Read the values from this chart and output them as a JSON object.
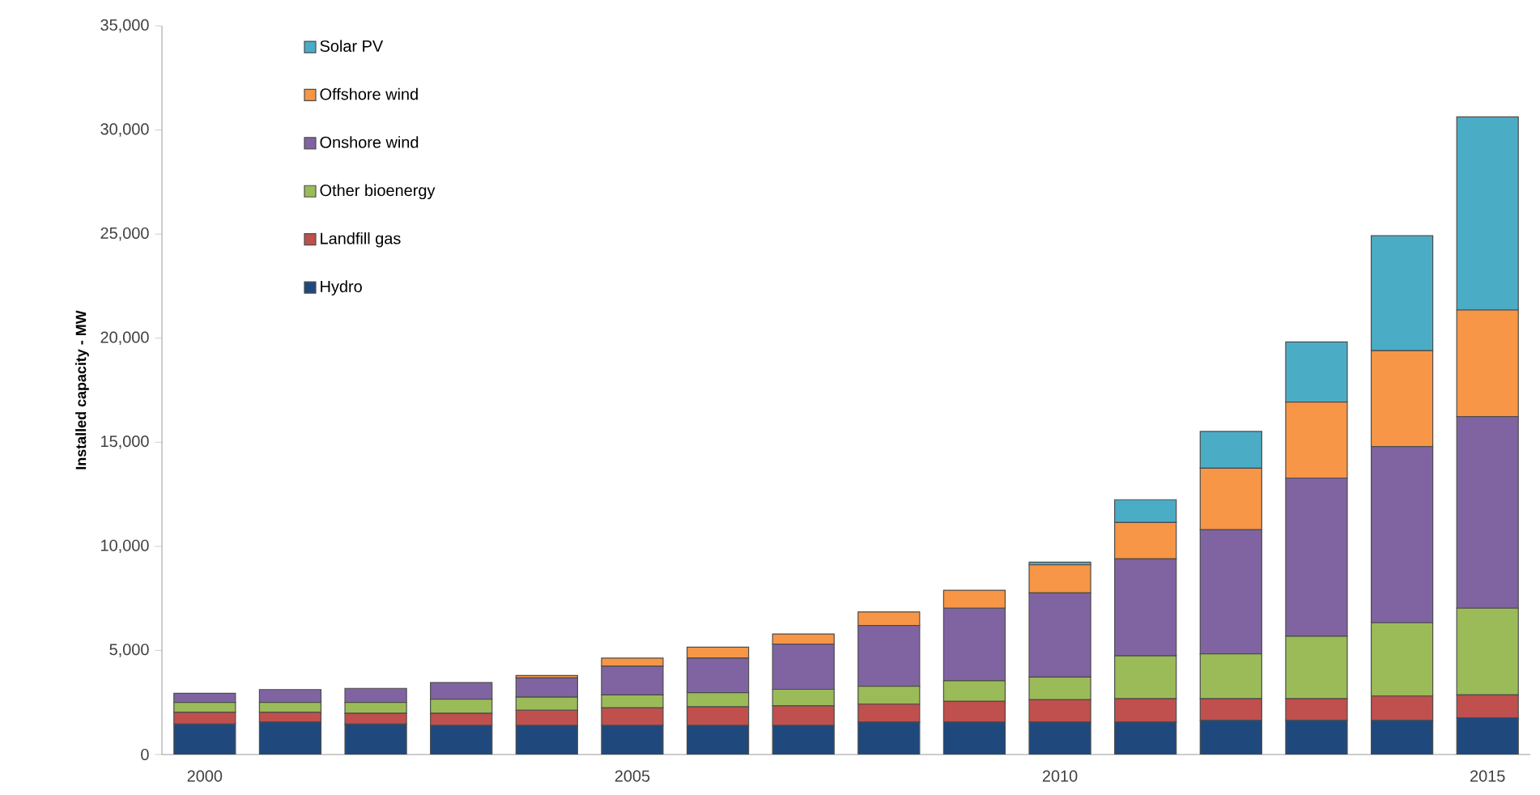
{
  "chart_data": {
    "type": "bar",
    "stacked": true,
    "ylabel": "Installed capacity - MW",
    "categories": [
      "2000",
      null,
      null,
      null,
      null,
      "2005",
      null,
      null,
      null,
      null,
      "2010",
      null,
      null,
      null,
      null,
      "2015"
    ],
    "series": [
      {
        "name": "Hydro",
        "color": "#1f497d",
        "values": [
          1460,
          1560,
          1460,
          1400,
          1400,
          1400,
          1400,
          1400,
          1560,
          1560,
          1560,
          1560,
          1640,
          1640,
          1640,
          1770
        ]
      },
      {
        "name": "Landfill gas",
        "color": "#c0504d",
        "values": [
          570,
          470,
          520,
          580,
          730,
          840,
          890,
          940,
          860,
          990,
          1070,
          1120,
          1040,
          1040,
          1170,
          1090
        ]
      },
      {
        "name": "Other bioenergy",
        "color": "#9bbb59",
        "values": [
          470,
          470,
          520,
          680,
          630,
          620,
          680,
          790,
          860,
          990,
          1090,
          2060,
          2160,
          3000,
          3520,
          4170
        ]
      },
      {
        "name": "Onshore wind",
        "color": "#8064a2",
        "values": [
          440,
          620,
          680,
          800,
          920,
          1380,
          1660,
          2170,
          2920,
          3490,
          4040,
          4660,
          5960,
          7600,
          8460,
          9200
        ]
      },
      {
        "name": "Offshore wind",
        "color": "#f79646",
        "values": [
          0,
          0,
          null,
          null,
          120,
          390,
          530,
          490,
          650,
          860,
          1350,
          1750,
          2950,
          3650,
          4610,
          5120
        ]
      },
      {
        "name": "Solar PV",
        "color": "#4bacc6",
        "values": [
          0,
          0,
          0,
          0,
          0,
          0,
          0,
          0,
          0,
          0,
          130,
          1090,
          1770,
          2890,
          5520,
          9280
        ]
      }
    ],
    "ylim": [
      0,
      35000
    ],
    "yticks": [
      0,
      {
        "value": 5000,
        "label": "5,000"
      },
      {
        "value": 10000,
        "label": "10,000"
      },
      {
        "value": 15000,
        "label": "15,000"
      },
      {
        "value": 20000,
        "label": "20,000"
      },
      {
        "value": 25000,
        "label": "25,000"
      },
      {
        "value": 30000,
        "label": "30,000"
      },
      {
        "value": 35000,
        "label": "35,000"
      }
    ],
    "legend": "top left",
    "grid": false
  }
}
